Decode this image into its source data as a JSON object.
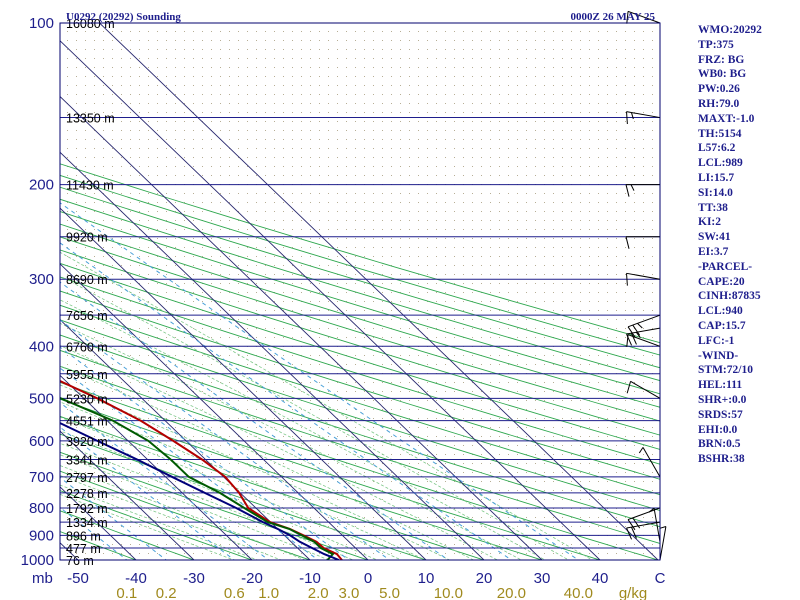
{
  "chart_data": {
    "type": "skew-t",
    "title_left": "U0292 (20292) Sounding",
    "title_right": "0000Z 26 MAY 25",
    "pressure_ticks": [
      100,
      200,
      300,
      400,
      500,
      600,
      700,
      800,
      900,
      1000
    ],
    "pressure_unit": "mb",
    "temperature_ticks": [
      -50,
      -40,
      -30,
      -20,
      -10,
      0,
      10,
      20,
      30,
      40
    ],
    "temperature_end_label": "C",
    "mixing_ratio_ticks": [
      "0.1",
      "0.2",
      "0.6",
      "1.0",
      "2.0",
      "3.0",
      "5.0",
      "10.0",
      "20.0",
      "40.0"
    ],
    "mixing_ratio_unit": "g/kg",
    "height_labels": [
      {
        "label": "16080 m",
        "p": 100
      },
      {
        "label": "13350 m",
        "p": 150
      },
      {
        "label": "11430 m",
        "p": 200
      },
      {
        "label": "9920 m",
        "p": 250
      },
      {
        "label": "8690 m",
        "p": 300
      },
      {
        "label": "7656 m",
        "p": 350
      },
      {
        "label": "6760 m",
        "p": 400
      },
      {
        "label": "5955 m",
        "p": 450
      },
      {
        "label": "5230 m",
        "p": 500
      },
      {
        "label": "4551 m",
        "p": 550
      },
      {
        "label": "3920 m",
        "p": 600
      },
      {
        "label": "3341 m",
        "p": 650
      },
      {
        "label": "2797 m",
        "p": 700
      },
      {
        "label": "2278 m",
        "p": 750
      },
      {
        "label": "1792 m",
        "p": 800
      },
      {
        "label": "1334 m",
        "p": 850
      },
      {
        "label": "896 m",
        "p": 900
      },
      {
        "label": "477 m",
        "p": 950
      },
      {
        "label": "76 m",
        "p": 1000
      }
    ],
    "series": [
      {
        "name": "",
        "color": "#b40000",
        "points": [
          [
            1000,
            -4.5
          ],
          [
            975,
            -4.3
          ],
          [
            950,
            -5.5
          ],
          [
            925,
            -5.6
          ],
          [
            900,
            -6.7
          ],
          [
            875,
            -7.9
          ],
          [
            850,
            -10.1
          ],
          [
            800,
            -11.3
          ],
          [
            750,
            -10.2
          ],
          [
            700,
            -9.7
          ],
          [
            650,
            -10.6
          ],
          [
            600,
            -12.2
          ],
          [
            550,
            -14.2
          ],
          [
            500,
            -17.7
          ],
          [
            450,
            -22.4
          ],
          [
            400,
            -28.6
          ],
          [
            350,
            -34.9
          ],
          [
            300,
            -40.0
          ],
          [
            250,
            -45.0
          ],
          [
            225,
            -47.8
          ],
          [
            200,
            -53.6
          ],
          [
            175,
            -57.5
          ],
          [
            150,
            -59.6
          ],
          [
            125,
            -63.0
          ],
          [
            100,
            -65.8
          ]
        ]
      },
      {
        "name": "",
        "color": "#005a00",
        "points": [
          [
            1000,
            -7.0
          ],
          [
            975,
            -5.0
          ],
          [
            950,
            -6.0
          ],
          [
            925,
            -6.0
          ],
          [
            900,
            -7.0
          ],
          [
            875,
            -8.0
          ],
          [
            850,
            -10.5
          ],
          [
            800,
            -12.0
          ],
          [
            750,
            -13.5
          ],
          [
            700,
            -16.0
          ],
          [
            650,
            -16.0
          ],
          [
            600,
            -16.5
          ],
          [
            550,
            -19.0
          ],
          [
            500,
            -24.0
          ],
          [
            450,
            -29.0
          ],
          [
            400,
            -36.5
          ],
          [
            350,
            -42.2
          ],
          [
            300,
            -47.0
          ],
          [
            250,
            -51.5
          ],
          [
            225,
            -56.0
          ],
          [
            200,
            -63.0
          ],
          [
            175,
            -71.0
          ],
          [
            150,
            -76.0
          ],
          [
            125,
            -82.0
          ],
          [
            100,
            -88.0
          ]
        ]
      },
      {
        "name": "",
        "color": "#00007a",
        "points": [
          [
            1000,
            -5.0
          ],
          [
            975,
            -6.5
          ],
          [
            950,
            -7.5
          ],
          [
            925,
            -8.5
          ],
          [
            900,
            -9.0
          ],
          [
            875,
            -10.0
          ],
          [
            850,
            -11.3
          ],
          [
            800,
            -13.4
          ],
          [
            750,
            -16.1
          ],
          [
            700,
            -18.9
          ],
          [
            650,
            -21.8
          ],
          [
            600,
            -25.3
          ],
          [
            550,
            -29.0
          ],
          [
            500,
            -33.0
          ],
          [
            450,
            -37.8
          ],
          [
            400,
            -43.2
          ],
          [
            350,
            -49.1
          ],
          [
            300,
            -56.0
          ],
          [
            250,
            -64.0
          ],
          [
            200,
            -73.0
          ],
          [
            150,
            -84.0
          ],
          [
            100,
            -98.0
          ]
        ]
      }
    ],
    "wind_barbs": [
      {
        "p": 100,
        "direction": 290,
        "speed_kt": 10
      },
      {
        "p": 150,
        "direction": 280,
        "speed_kt": 15
      },
      {
        "p": 200,
        "direction": 270,
        "speed_kt": 15
      },
      {
        "p": 250,
        "direction": 270,
        "speed_kt": 10
      },
      {
        "p": 300,
        "direction": 280,
        "speed_kt": 10
      },
      {
        "p": 350,
        "direction": 250,
        "speed_kt": 25
      },
      {
        "p": 370,
        "direction": 260,
        "speed_kt": 25
      },
      {
        "p": 400,
        "direction": 290,
        "speed_kt": 10
      },
      {
        "p": 500,
        "direction": 300,
        "speed_kt": 10
      },
      {
        "p": 700,
        "direction": 330,
        "speed_kt": 5
      },
      {
        "p": 800,
        "direction": 250,
        "speed_kt": 20
      },
      {
        "p": 850,
        "direction": 260,
        "speed_kt": 20
      },
      {
        "p": 925,
        "direction": 350,
        "speed_kt": 5
      },
      {
        "p": 1000,
        "direction": 10,
        "speed_kt": 5
      }
    ]
  },
  "indices": [
    "WMO:20292",
    "TP:375",
    "FRZ: BG",
    "WB0: BG",
    "PW:0.26",
    "RH:79.0",
    "MAXT:-1.0",
    "TH:5154",
    "L57:6.2",
    "LCL:989",
    "LI:15.7",
    "SI:14.0",
    "TT:38",
    "KI:2",
    "SW:41",
    "EI:3.7",
    "-PARCEL-",
    "CAPE:20",
    "CINH:87835",
    "LCL:940",
    "CAP:15.7",
    "LFC:-1",
    "-WIND-",
    "STM:72/10",
    "HEL:111",
    "SHR+:0.0",
    "SRDS:57",
    "EHI:0.0",
    "BRN:0.5",
    "BSHR:38"
  ],
  "colors": {
    "frame": "#00006e",
    "isotherm": "#28286e",
    "dry_adiabat": "#2fa84f",
    "moist_adiabat": "#7fc88a",
    "mixing_ratio": "#4aa0d8",
    "bg_dots": "#9c9278"
  }
}
